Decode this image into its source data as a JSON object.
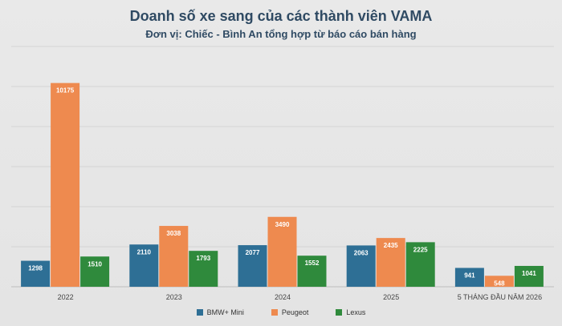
{
  "chart_data": {
    "type": "bar",
    "title": "Doanh số xe sang của các thành viên VAMA",
    "subtitle": "Đơn vị: Chiếc - Bình An tổng hợp từ báo cáo bán hàng",
    "categories": [
      "2022",
      "2023",
      "2024",
      "2025",
      "5 THÁNG ĐẦU NĂM 2026"
    ],
    "series": [
      {
        "name": "BMW+ Mini",
        "color": "#2e6f95",
        "values": [
          1298,
          2110,
          2077,
          2063,
          941
        ]
      },
      {
        "name": "Peugeot",
        "color": "#ee8a4f",
        "values": [
          10175,
          3038,
          3490,
          2435,
          548
        ]
      },
      {
        "name": "Lexus",
        "color": "#2f8a3c",
        "values": [
          1510,
          1793,
          1552,
          2225,
          1041
        ]
      }
    ],
    "ylim": [
      0,
      12000
    ],
    "grid": true,
    "legend_position": "bottom"
  }
}
